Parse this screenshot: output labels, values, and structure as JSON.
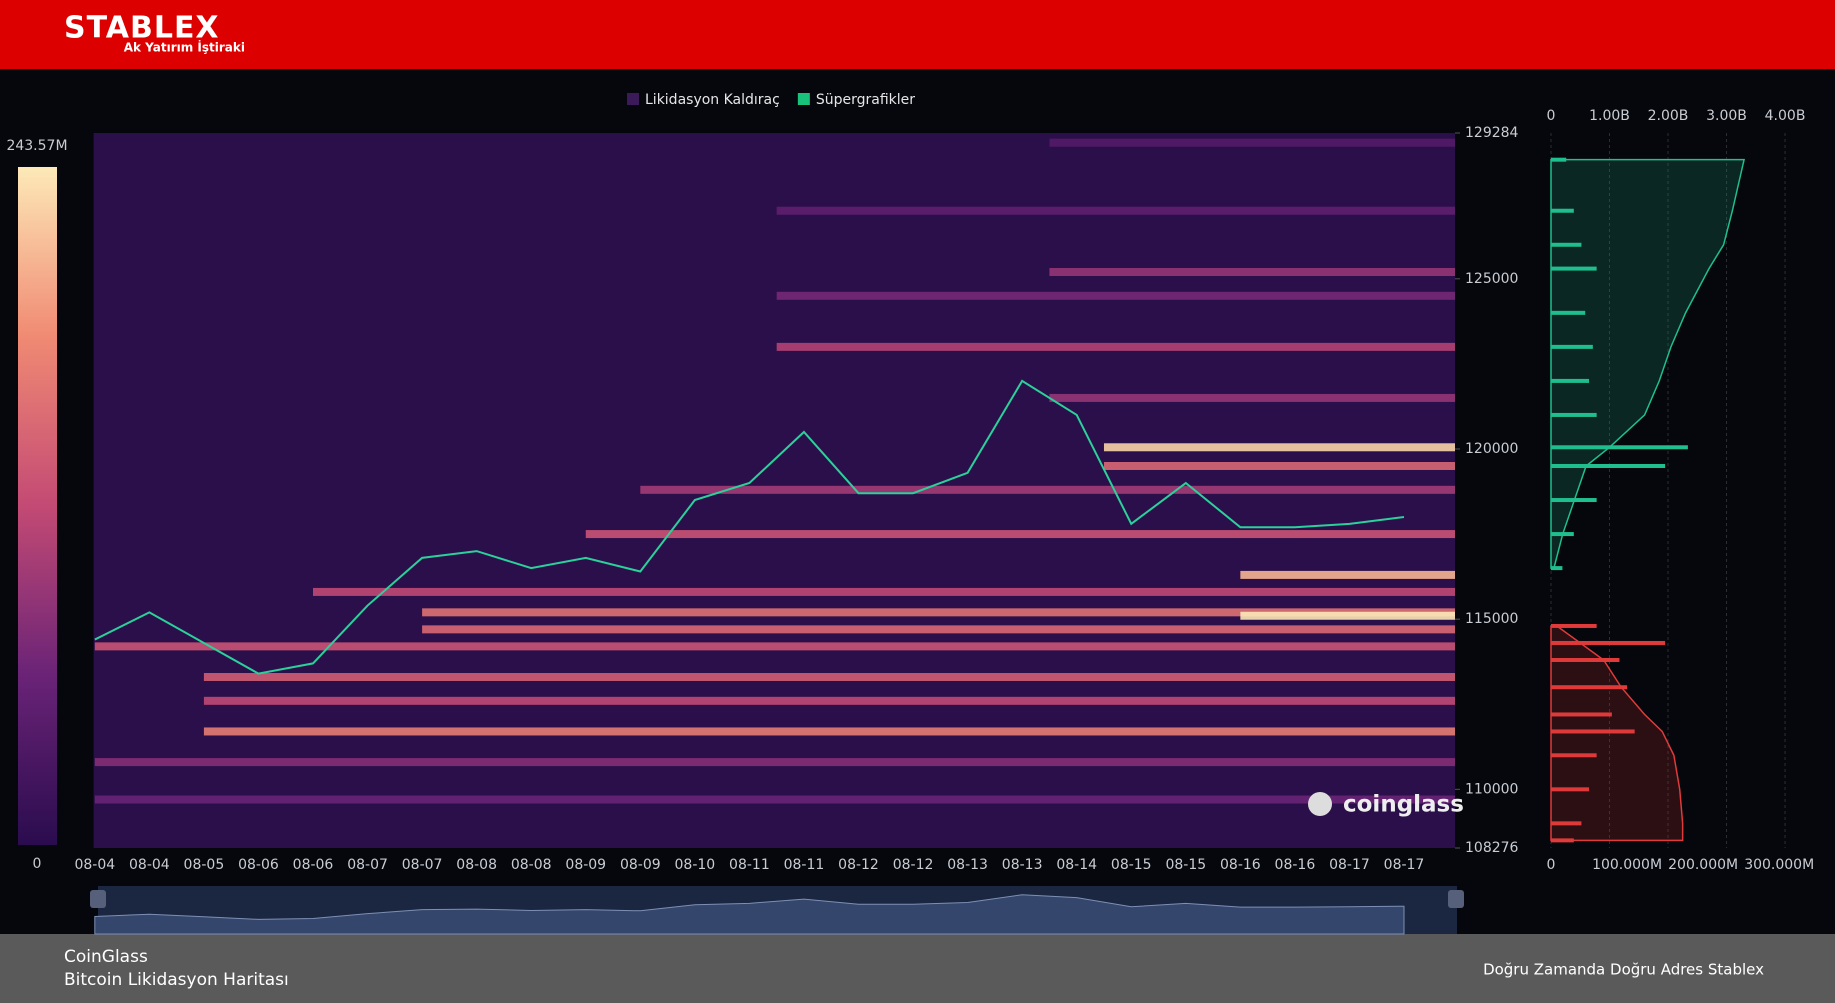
{
  "header": {
    "brand": "STABLEX",
    "tagline": "Ak Yatırım İştiraki"
  },
  "chart_data": {
    "type": "heatmap",
    "legend": [
      {
        "name": "Likidasyon Kaldıraç",
        "color": "#3b1a5a"
      },
      {
        "name": "Süpergrafikler",
        "color": "#19c27a"
      }
    ],
    "categories": [
      "08-04",
      "08-04",
      "08-05",
      "08-06",
      "08-06",
      "08-07",
      "08-07",
      "08-08",
      "08-08",
      "08-09",
      "08-09",
      "08-10",
      "08-11",
      "08-11",
      "08-12",
      "08-12",
      "08-13",
      "08-13",
      "08-14",
      "08-15",
      "08-15",
      "08-16",
      "08-16",
      "08-17",
      "08-17"
    ],
    "price": [
      114400,
      115200,
      114300,
      113400,
      113700,
      115400,
      116800,
      117000,
      116500,
      116800,
      116400,
      118500,
      119000,
      120500,
      118700,
      118700,
      119300,
      122000,
      121000,
      117800,
      119000,
      117700,
      117700,
      117800,
      118000
    ],
    "price_color": "#2bd19a",
    "ylim": [
      108276,
      129284
    ],
    "yticks": [
      129284,
      125000,
      120000,
      115000,
      110000,
      108276
    ],
    "colorscale": [
      "#2a0c4e",
      "#6a2377",
      "#c34a74",
      "#f08a73",
      "#fde9b8"
    ],
    "colorbar": {
      "lim": [
        0,
        243570000
      ],
      "ticks": [
        {
          "value": 243570000,
          "label": "243.57M"
        },
        0
      ]
    },
    "bands": {
      "price": [
        129000,
        127000,
        125200,
        124500,
        123000,
        121500,
        120050,
        119500,
        118800,
        117500,
        116300,
        115800,
        115200,
        115100,
        114700,
        114200,
        113300,
        112600,
        111700,
        110800,
        109700
      ],
      "start": [
        17.5,
        12.5,
        17.5,
        12.5,
        12.5,
        17.5,
        18.5,
        18.5,
        10,
        9,
        21,
        4,
        6,
        21,
        6,
        0,
        2,
        2,
        2,
        0,
        0
      ],
      "values": [
        40000000,
        50000000,
        90000000,
        70000000,
        110000000,
        90000000,
        230000000,
        150000000,
        100000000,
        130000000,
        210000000,
        120000000,
        160000000,
        243000000,
        150000000,
        130000000,
        140000000,
        120000000,
        170000000,
        80000000,
        60000000
      ]
    },
    "watermark": "coinglass",
    "profile": {
      "xlim": [
        0,
        330000000
      ],
      "xticks": [
        0,
        {
          "value": 100000000,
          "label": "100.000M"
        },
        {
          "value": 200000000,
          "label": "200.000M"
        },
        {
          "value": 300000000,
          "label": "300.000M"
        }
      ],
      "x2lim": [
        0,
        4290000000
      ],
      "x2ticks": [
        0,
        {
          "value": 1000000000,
          "label": "1.00B"
        },
        {
          "value": 2000000000,
          "label": "2.00B"
        },
        {
          "value": 3000000000,
          "label": "3.00B"
        },
        {
          "value": 4000000000,
          "label": "4.00B"
        }
      ],
      "series": [
        {
          "color": "#1fbf8f",
          "price": [
            128500,
            127000,
            126000,
            125300,
            124000,
            123000,
            122000,
            121000,
            120050,
            119500,
            118500,
            117500,
            116500
          ],
          "values": [
            20000000,
            30000000,
            40000000,
            60000000,
            45000000,
            55000000,
            50000000,
            60000000,
            180000000,
            150000000,
            60000000,
            30000000,
            15000000
          ],
          "cumulative": [
            3300000000,
            3100000000,
            2950000000,
            2700000000,
            2300000000,
            2050000000,
            1850000000,
            1600000000,
            1000000000,
            600000000,
            400000000,
            200000000,
            50000000
          ]
        },
        {
          "color": "#e03a3a",
          "price": [
            114800,
            114300,
            113800,
            113000,
            112200,
            111700,
            111000,
            110000,
            109000,
            108500
          ],
          "values": [
            60000000,
            150000000,
            90000000,
            100000000,
            80000000,
            110000000,
            60000000,
            50000000,
            40000000,
            30000000
          ],
          "cumulative": [
            100000000,
            500000000,
            900000000,
            1200000000,
            1600000000,
            1900000000,
            2100000000,
            2200000000,
            2250000000,
            2250000000
          ]
        }
      ]
    }
  },
  "footer": {
    "source": "CoinGlass",
    "subtitle": "Bitcoin Likidasyon Haritası",
    "slogan": "Doğru Zamanda Doğru Adres Stablex"
  }
}
